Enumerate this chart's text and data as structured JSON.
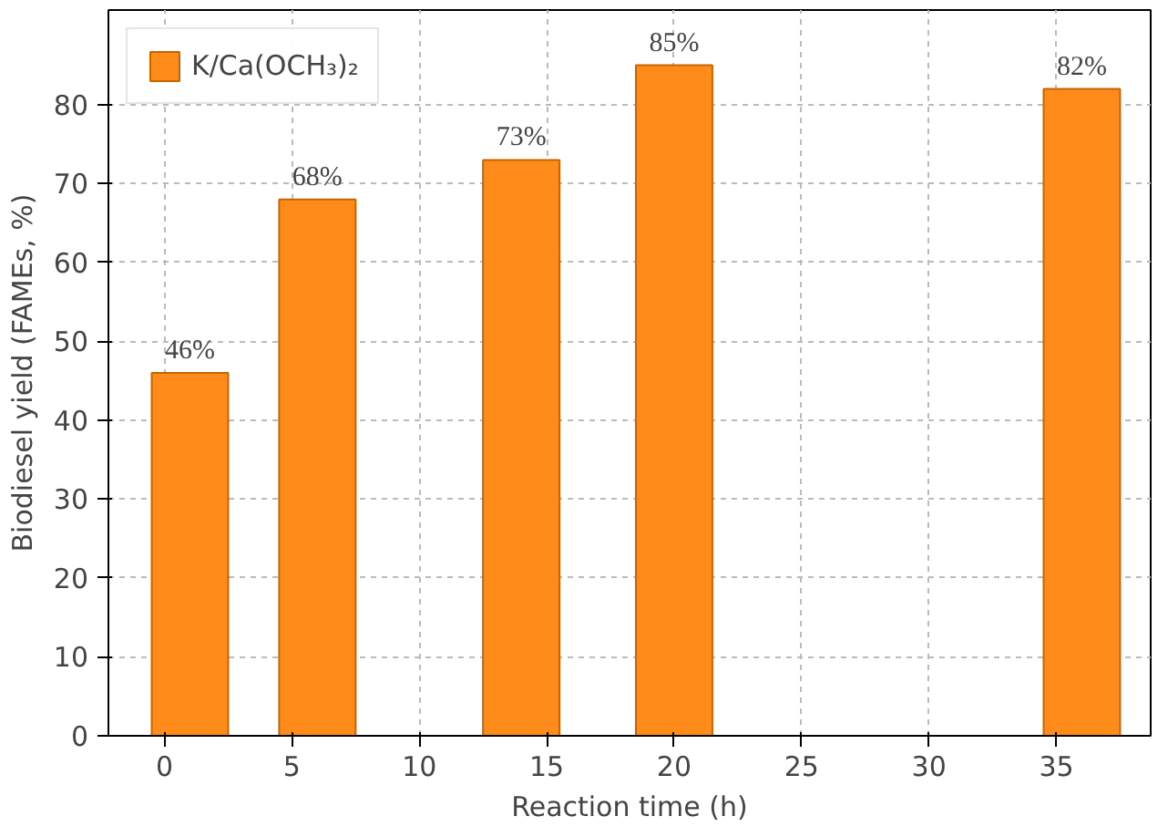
{
  "chart_data": {
    "type": "bar",
    "xlabel": "Reaction time (h)",
    "ylabel": "Biodiesel yield (FAMEs, %)",
    "x": [
      1,
      6,
      14,
      20,
      36
    ],
    "series": [
      {
        "name": "K/Ca(OCH₃)₂",
        "color": "#ff8c1a",
        "values": [
          46,
          68,
          73,
          85,
          82
        ]
      }
    ],
    "value_labels": [
      "46%",
      "68%",
      "73%",
      "85%",
      "82%"
    ],
    "xlim": [
      -2.2,
      38.7
    ],
    "xticks": [
      0,
      5,
      10,
      15,
      20,
      25,
      30,
      35
    ],
    "ylim": [
      0,
      92
    ],
    "yticks": [
      0,
      10,
      20,
      30,
      40,
      50,
      60,
      70,
      80
    ],
    "grid": true,
    "legend": "top left"
  }
}
